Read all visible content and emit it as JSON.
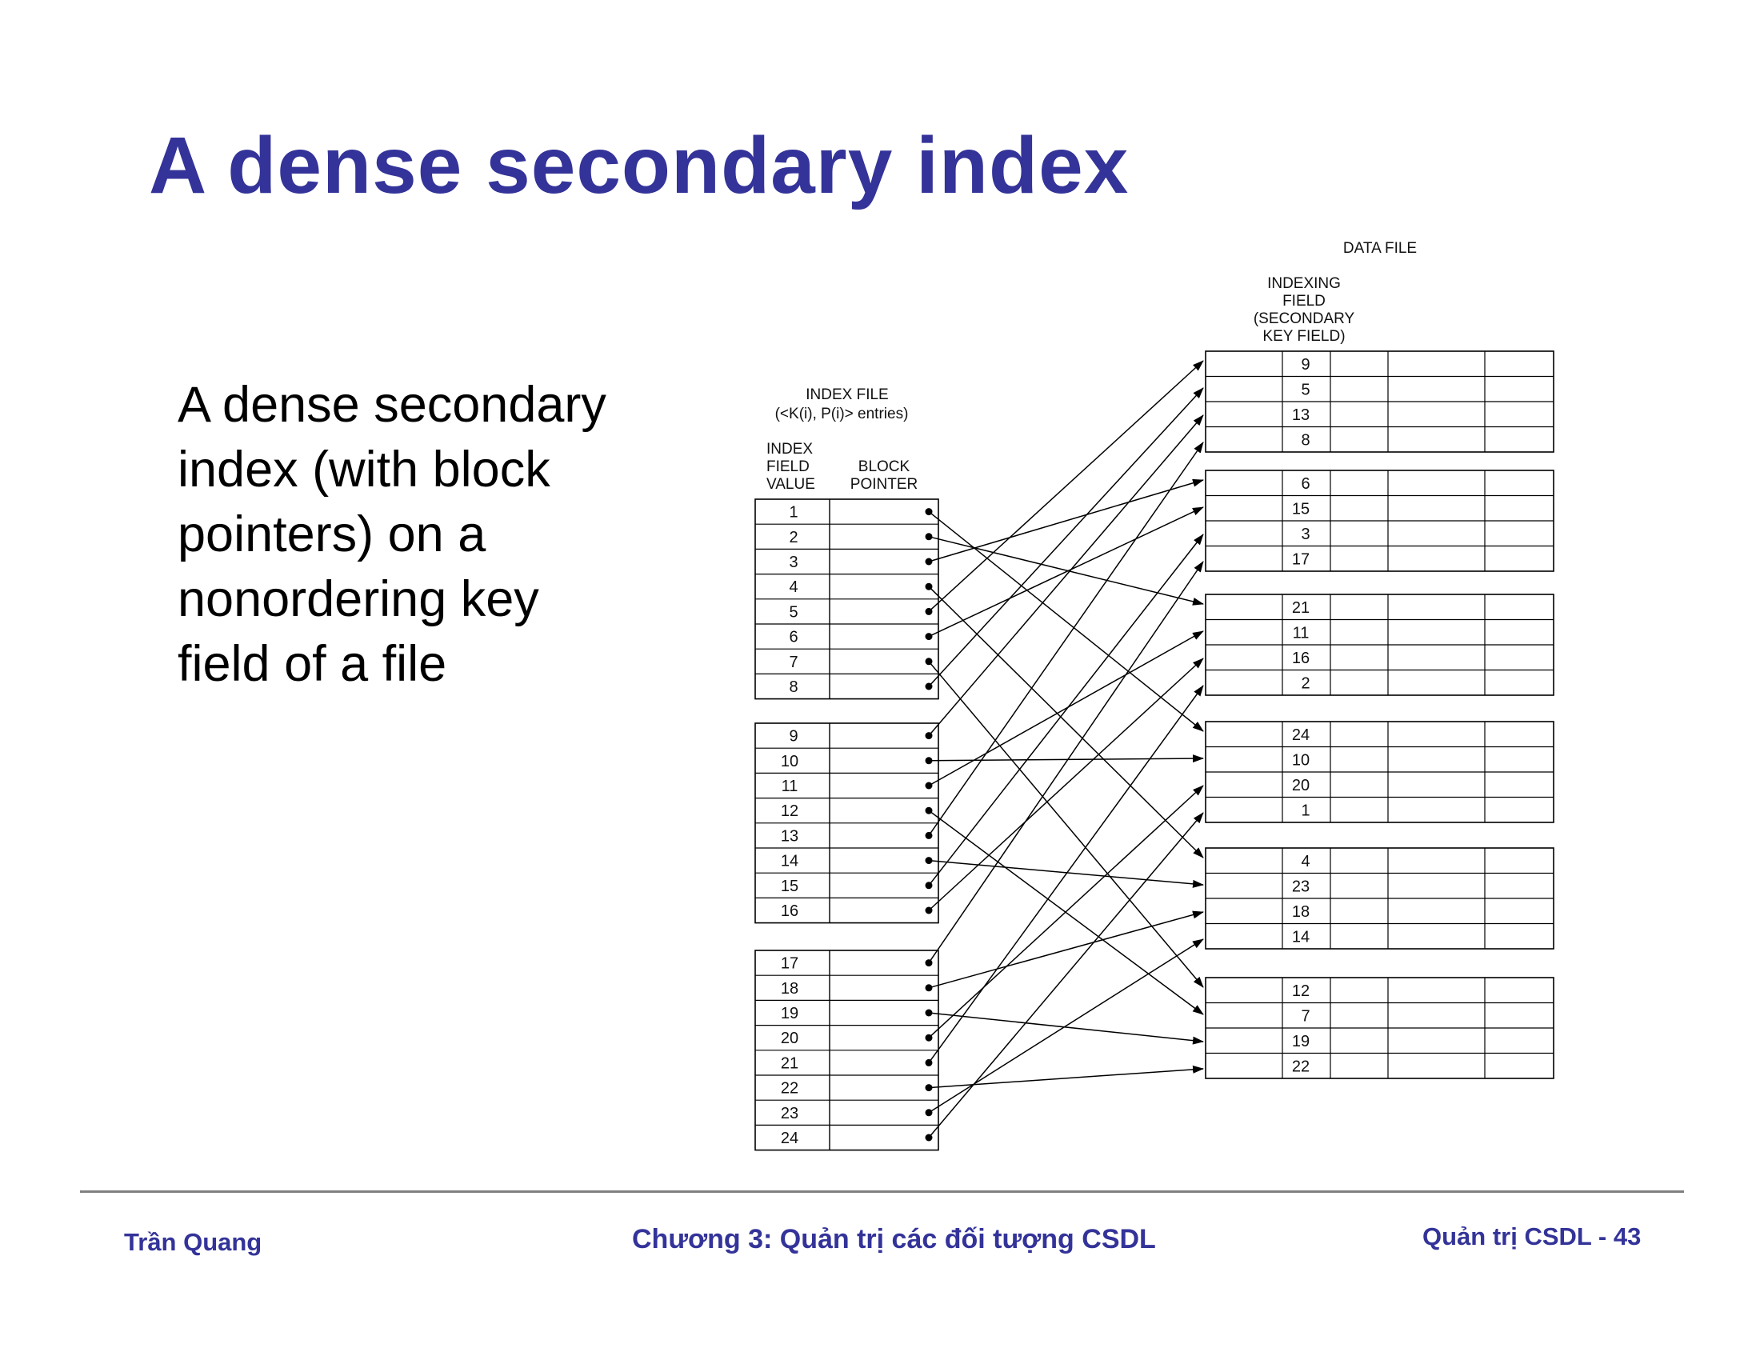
{
  "title": "A dense secondary index",
  "bullet_lines": [
    "A dense secondary",
    "index (with block",
    "pointers) on a",
    "nonordering key",
    "field of a file"
  ],
  "diagram": {
    "index_file_title": [
      "INDEX FILE",
      "(<K(i), P(i)> entries)"
    ],
    "index_field_header": [
      "INDEX",
      "FIELD",
      "VALUE"
    ],
    "block_pointer_header": [
      "BLOCK",
      "POINTER"
    ],
    "index_blocks": [
      [
        "1",
        "2",
        "3",
        "4",
        "5",
        "6",
        "7",
        "8"
      ],
      [
        "9",
        "10",
        "11",
        "12",
        "13",
        "14",
        "15",
        "16"
      ],
      [
        "17",
        "18",
        "19",
        "20",
        "21",
        "22",
        "23",
        "24"
      ]
    ],
    "data_file_title": "DATA FILE",
    "indexing_field_header": [
      "INDEXING",
      "FIELD",
      "(SECONDARY",
      "KEY FIELD)"
    ],
    "data_blocks": [
      [
        "9",
        "5",
        "13",
        "8"
      ],
      [
        "6",
        "15",
        "3",
        "17"
      ],
      [
        "21",
        "11",
        "16",
        "2"
      ],
      [
        "24",
        "10",
        "20",
        "1"
      ],
      [
        "4",
        "23",
        "18",
        "14"
      ],
      [
        "12",
        "7",
        "19",
        "22"
      ]
    ],
    "line_color": "#000000"
  },
  "footer": {
    "left": "Trần Quang",
    "center": "Chương 3: Quản trị các đối tượng CSDL",
    "right": "Quản trị CSDL - 43"
  }
}
